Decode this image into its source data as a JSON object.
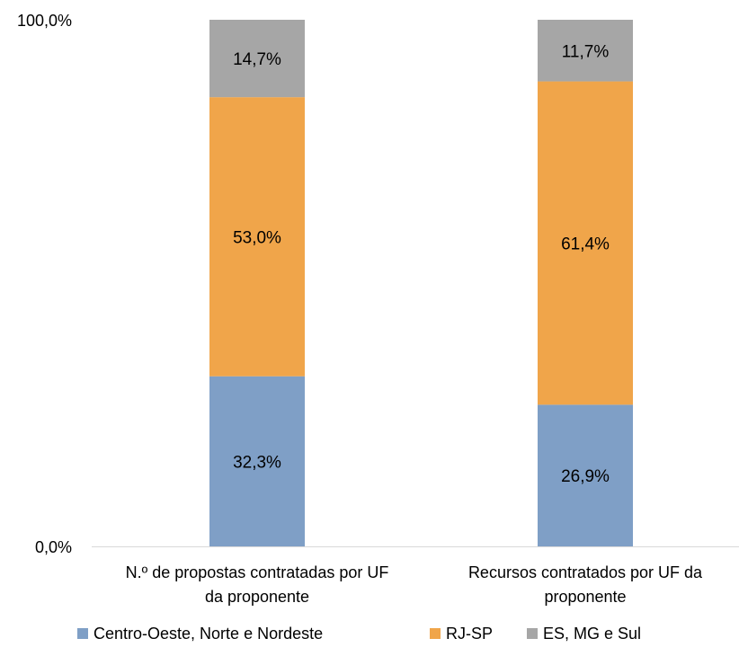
{
  "chart_data": {
    "type": "bar",
    "stacked": true,
    "percent": true,
    "categories": [
      [
        "N.º de propostas contratadas por UF",
        "da proponente"
      ],
      [
        "Recursos contratados por UF da",
        "proponente"
      ]
    ],
    "series": [
      {
        "name": "Centro-Oeste, Norte e Nordeste",
        "values": [
          32.3,
          26.9
        ],
        "labels": [
          "32,3%",
          "26,9%"
        ],
        "color": "#7f9fc6"
      },
      {
        "name": "RJ-SP",
        "values": [
          53.0,
          61.4
        ],
        "labels": [
          "53,0%",
          "61,4%"
        ],
        "color": "#f0a54a"
      },
      {
        "name": "ES, MG e Sul",
        "values": [
          14.7,
          11.7
        ],
        "labels": [
          "14,7%",
          "11,7%"
        ],
        "color": "#a6a6a6"
      }
    ],
    "yticks": [
      "0,0%",
      "100,0%"
    ],
    "ylim": [
      0,
      100
    ],
    "grid": false,
    "legend_position": "bottom",
    "axis_color": "#d9d9d9"
  }
}
